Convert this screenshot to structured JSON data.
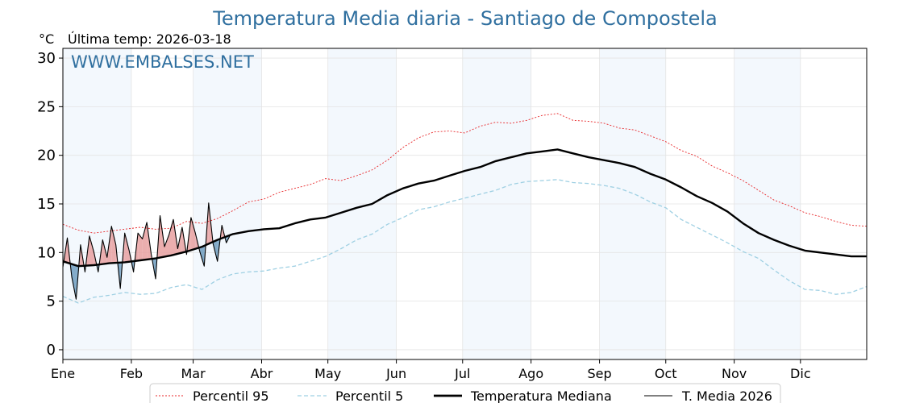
{
  "chart_data": {
    "type": "line",
    "title": "Temperatura Media diaria - Santiago de Compostela",
    "unit_label": "°C",
    "subtitle": "Última temp: 2026-03-18",
    "watermark": "WWW.EMBALSES.NET",
    "ylim": [
      -1,
      31
    ],
    "yticks": [
      0,
      5,
      10,
      15,
      20,
      25,
      30
    ],
    "months": [
      "Ene",
      "Feb",
      "Mar",
      "Abr",
      "May",
      "Jun",
      "Jul",
      "Ago",
      "Sep",
      "Oct",
      "Nov",
      "Dic"
    ],
    "month_start_days": [
      1,
      32,
      60,
      91,
      121,
      152,
      182,
      213,
      244,
      274,
      305,
      335
    ],
    "shaded_month_indices": [
      0,
      2,
      4,
      6,
      8,
      10
    ],
    "grid": true,
    "legend_position": "bottom",
    "colors": {
      "p95": "#e8272a",
      "p5": "#9fd0e3",
      "median": "#000000",
      "current": "#000000",
      "above_fill": "#e8a0a0",
      "below_fill": "#6f9ec0",
      "month_shade": "#f3f8fd"
    },
    "series": [
      {
        "name": "Percentil 95",
        "key": "p95",
        "x": [
          1,
          8,
          15,
          22,
          29,
          36,
          43,
          50,
          57,
          64,
          71,
          78,
          85,
          92,
          99,
          106,
          113,
          120,
          127,
          134,
          141,
          148,
          155,
          162,
          169,
          176,
          183,
          190,
          197,
          204,
          211,
          218,
          225,
          232,
          239,
          246,
          253,
          260,
          267,
          274,
          281,
          288,
          295,
          302,
          309,
          316,
          323,
          330,
          337,
          344,
          351,
          358,
          365
        ],
        "values": [
          12.9,
          12.3,
          12.0,
          12.2,
          12.4,
          12.6,
          12.4,
          12.5,
          13.2,
          13.0,
          13.5,
          14.3,
          15.2,
          15.5,
          16.2,
          16.6,
          17.0,
          17.6,
          17.4,
          17.9,
          18.5,
          19.5,
          20.8,
          21.8,
          22.4,
          22.5,
          22.3,
          23.0,
          23.4,
          23.3,
          23.6,
          24.1,
          24.3,
          23.6,
          23.5,
          23.3,
          22.8,
          22.6,
          22.0,
          21.4,
          20.5,
          19.9,
          18.9,
          18.2,
          17.4,
          16.4,
          15.4,
          14.8,
          14.1,
          13.7,
          13.2,
          12.8,
          12.7
        ]
      },
      {
        "name": "Percentil 5",
        "key": "p5",
        "x": [
          1,
          8,
          15,
          22,
          29,
          36,
          43,
          50,
          57,
          64,
          71,
          78,
          85,
          92,
          99,
          106,
          113,
          120,
          127,
          134,
          141,
          148,
          155,
          162,
          169,
          176,
          183,
          190,
          197,
          204,
          211,
          218,
          225,
          232,
          239,
          246,
          253,
          260,
          267,
          274,
          281,
          288,
          295,
          302,
          309,
          316,
          323,
          330,
          337,
          344,
          351,
          358,
          365
        ],
        "values": [
          5.5,
          4.8,
          5.4,
          5.6,
          5.9,
          5.7,
          5.8,
          6.4,
          6.7,
          6.2,
          7.2,
          7.8,
          8.0,
          8.1,
          8.4,
          8.6,
          9.1,
          9.6,
          10.4,
          11.3,
          11.9,
          12.9,
          13.6,
          14.4,
          14.7,
          15.2,
          15.6,
          16.0,
          16.4,
          17.0,
          17.3,
          17.4,
          17.5,
          17.2,
          17.1,
          16.9,
          16.6,
          16.0,
          15.2,
          14.6,
          13.4,
          12.6,
          11.8,
          11.0,
          10.1,
          9.4,
          8.2,
          7.1,
          6.2,
          6.1,
          5.7,
          5.9,
          6.5
        ]
      },
      {
        "name": "Temperatura Mediana",
        "key": "median",
        "x": [
          1,
          8,
          15,
          22,
          29,
          36,
          43,
          50,
          57,
          64,
          71,
          78,
          85,
          92,
          99,
          106,
          113,
          120,
          127,
          134,
          141,
          148,
          155,
          162,
          169,
          176,
          183,
          190,
          197,
          204,
          211,
          218,
          225,
          232,
          239,
          246,
          253,
          260,
          267,
          274,
          281,
          288,
          295,
          302,
          309,
          316,
          323,
          330,
          337,
          344,
          351,
          358,
          365
        ],
        "values": [
          9.1,
          8.6,
          8.7,
          8.9,
          9.0,
          9.2,
          9.4,
          9.7,
          10.1,
          10.6,
          11.3,
          11.9,
          12.2,
          12.4,
          12.5,
          13.0,
          13.4,
          13.6,
          14.1,
          14.6,
          15.0,
          15.9,
          16.6,
          17.1,
          17.4,
          17.9,
          18.4,
          18.8,
          19.4,
          19.8,
          20.2,
          20.4,
          20.6,
          20.2,
          19.8,
          19.5,
          19.2,
          18.8,
          18.1,
          17.5,
          16.7,
          15.8,
          15.1,
          14.2,
          13.0,
          12.0,
          11.3,
          10.7,
          10.2,
          10.0,
          9.8,
          9.6,
          9.6
        ]
      },
      {
        "name": "T. Media 2026",
        "key": "current",
        "x": [
          1,
          3,
          5,
          7,
          9,
          11,
          13,
          15,
          17,
          19,
          21,
          23,
          25,
          27,
          29,
          31,
          33,
          35,
          37,
          39,
          41,
          43,
          45,
          47,
          49,
          51,
          53,
          55,
          57,
          59,
          61,
          63,
          65,
          67,
          69,
          71,
          73,
          75,
          77
        ],
        "values": [
          8.5,
          11.5,
          7.5,
          5.2,
          10.8,
          8.0,
          11.7,
          10.1,
          8.0,
          11.3,
          9.5,
          12.7,
          10.8,
          6.3,
          12.0,
          10.2,
          8.0,
          12.0,
          11.4,
          13.1,
          9.8,
          7.3,
          13.8,
          10.6,
          11.8,
          13.4,
          10.4,
          12.6,
          9.8,
          13.6,
          12.0,
          10.1,
          8.6,
          15.1,
          10.9,
          9.1,
          12.8,
          11.0,
          11.9
        ]
      }
    ]
  }
}
